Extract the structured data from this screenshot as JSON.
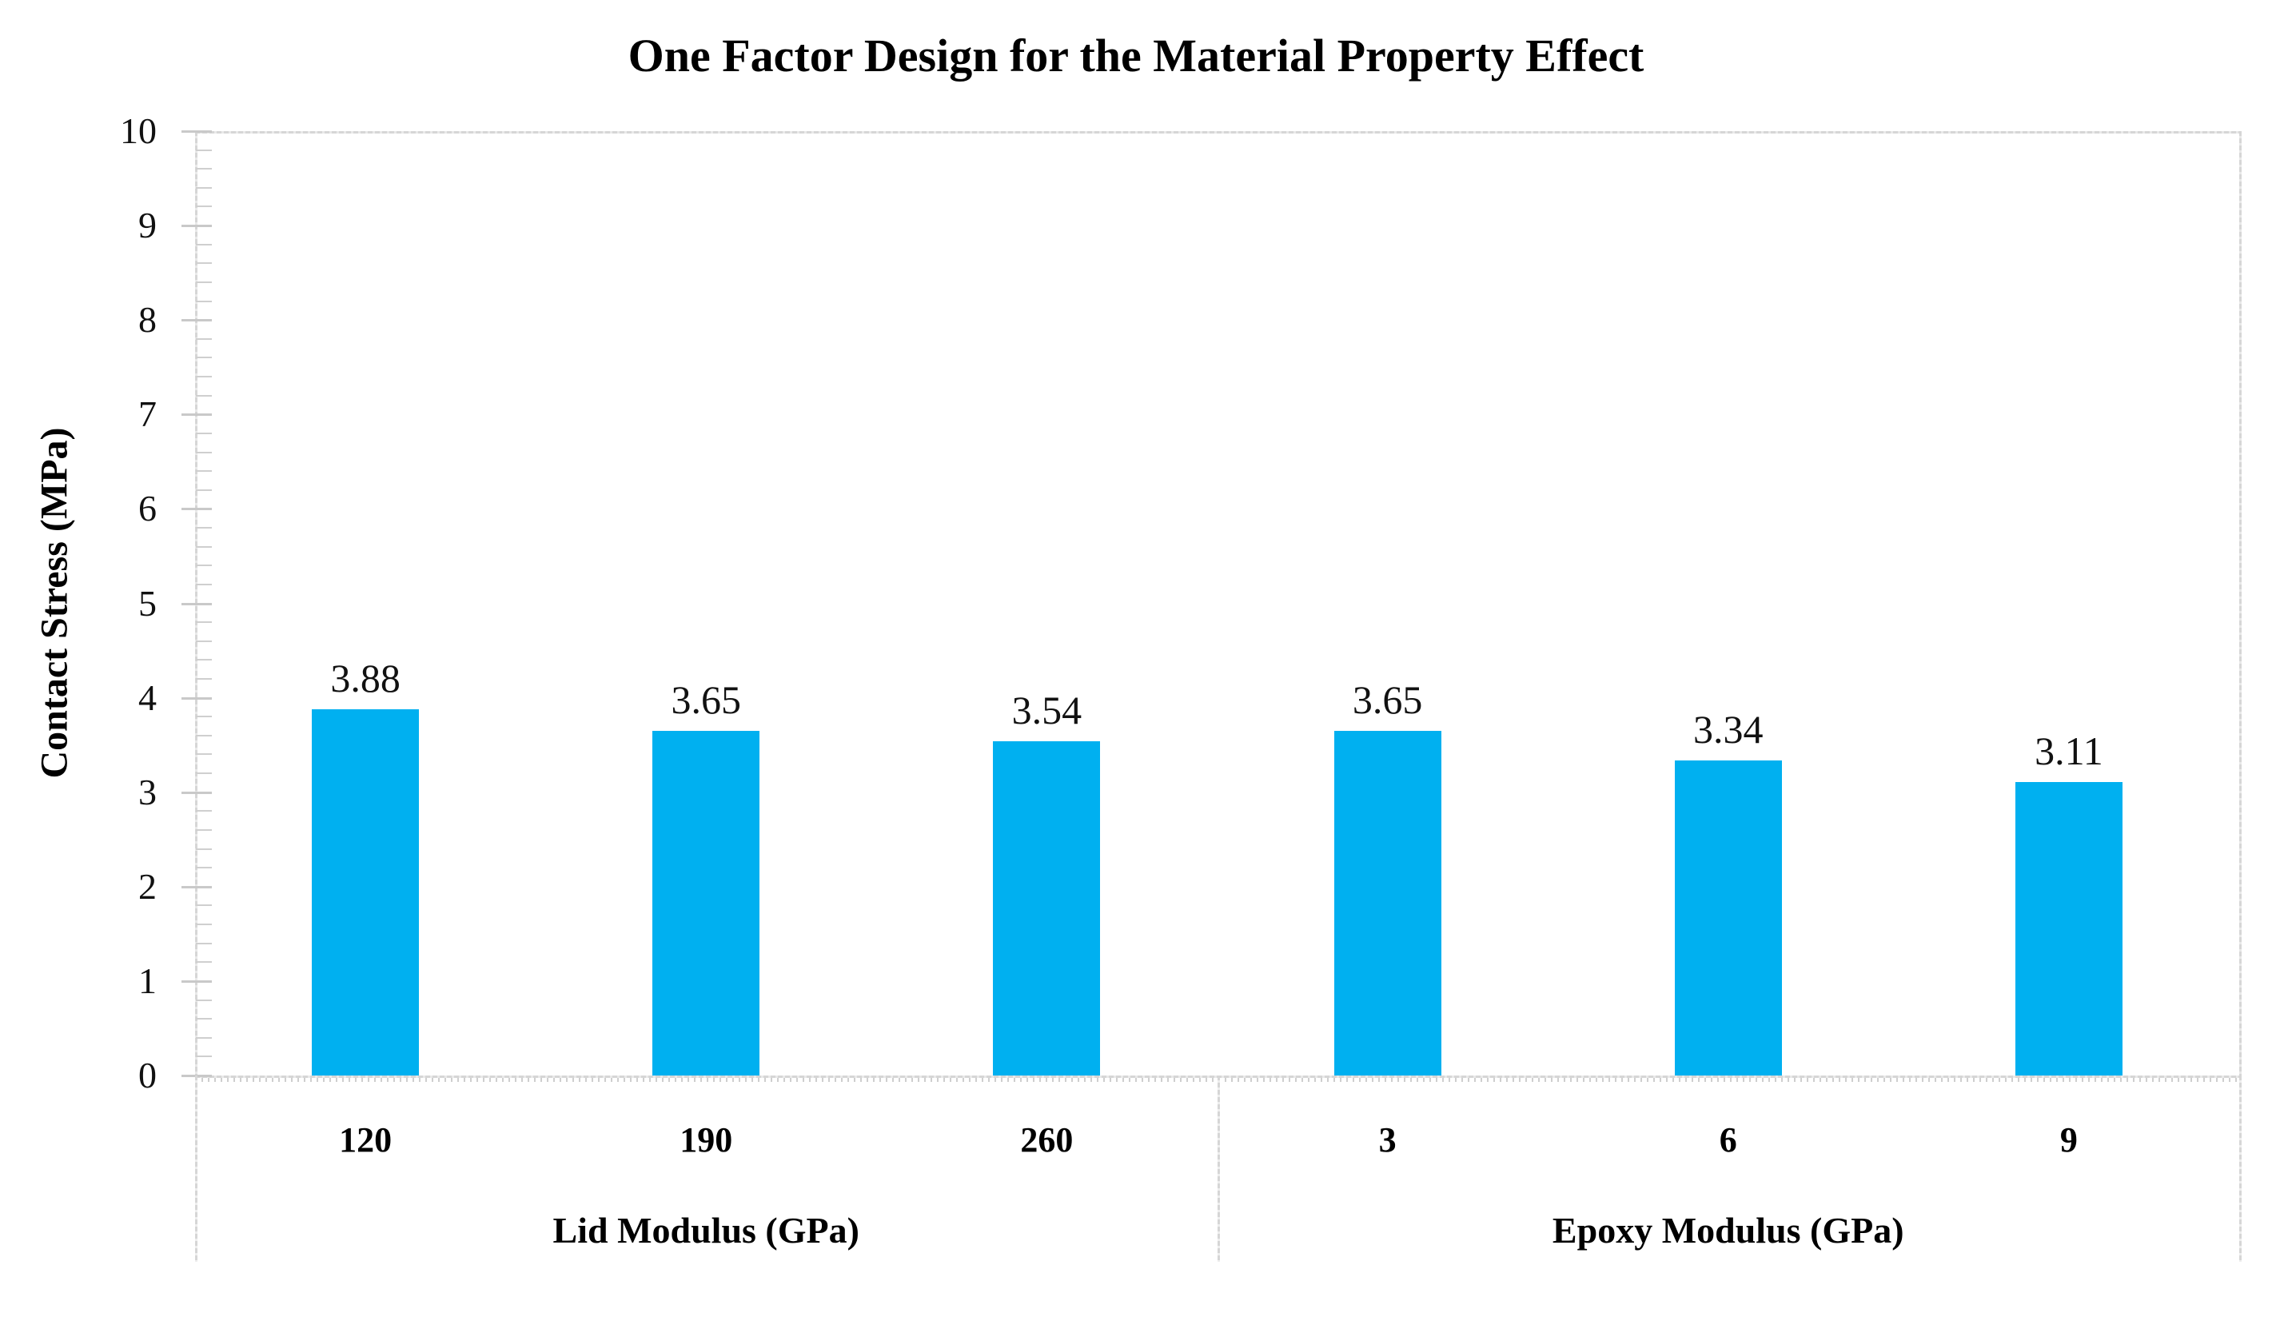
{
  "chart_data": {
    "type": "bar",
    "title": "One Factor Design for the Material Property Effect",
    "ylabel": "Contact Stress (MPa)",
    "xlabel": "",
    "ylim": [
      0,
      10
    ],
    "yticks": [
      0,
      1,
      2,
      3,
      4,
      5,
      6,
      7,
      8,
      9,
      10
    ],
    "minor_tick_divisions": 5,
    "grid": "off",
    "legend": "none",
    "bar_color": "#00B0F0",
    "groups": [
      {
        "label": "Lid Modulus (GPa)",
        "categories": [
          "120",
          "190",
          "260"
        ],
        "values": [
          3.88,
          3.65,
          3.54
        ],
        "value_labels": [
          "3.88",
          "3.65",
          "3.54"
        ]
      },
      {
        "label": "Epoxy Modulus (GPa)",
        "categories": [
          "3",
          "6",
          "9"
        ],
        "values": [
          3.65,
          3.34,
          3.11
        ],
        "value_labels": [
          "3.65",
          "3.34",
          "3.11"
        ]
      }
    ]
  },
  "colors": {
    "bar": "#00B0F0",
    "axis_line": "#D9D9D9",
    "tick": "#C9C9C9",
    "text": "#000000",
    "background": "#FFFFFF"
  }
}
